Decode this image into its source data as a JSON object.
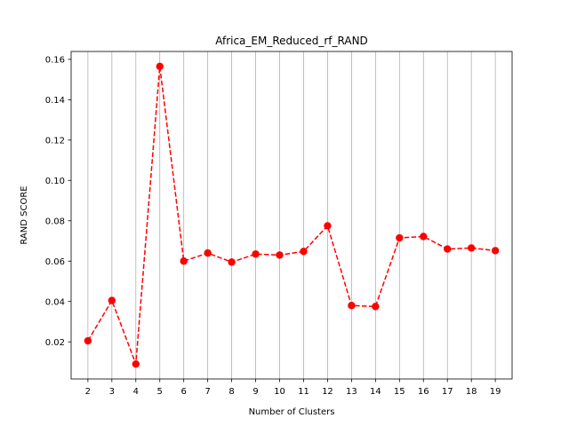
{
  "chart_data": {
    "type": "line",
    "title": "Africa_EM_Reduced_rf_RAND",
    "xlabel": "Number of Clusters",
    "ylabel": "RAND SCORE",
    "x": [
      2,
      3,
      4,
      5,
      6,
      7,
      8,
      9,
      10,
      11,
      12,
      13,
      14,
      15,
      16,
      17,
      18,
      19
    ],
    "series": [
      {
        "values": [
          0.0205,
          0.0405,
          0.009,
          0.1565,
          0.06,
          0.064,
          0.0595,
          0.0635,
          0.063,
          0.0648,
          0.0775,
          0.038,
          0.0375,
          0.0715,
          0.0722,
          0.066,
          0.0665,
          0.0652
        ],
        "color": "#ff0000",
        "line_style": "dashed",
        "marker": "circle"
      }
    ],
    "xlim": [
      1.3,
      19.7
    ],
    "ylim": [
      0.0016,
      0.1639
    ],
    "yticks": [
      0.02,
      0.04,
      0.06,
      0.08,
      0.1,
      0.12,
      0.14,
      0.16
    ],
    "ytick_labels": [
      "0.02",
      "0.04",
      "0.06",
      "0.08",
      "0.10",
      "0.12",
      "0.14",
      "0.16"
    ],
    "xticks": [
      2,
      3,
      4,
      5,
      6,
      7,
      8,
      9,
      10,
      11,
      12,
      13,
      14,
      15,
      16,
      17,
      18,
      19
    ],
    "xtick_labels": [
      "2",
      "3",
      "4",
      "5",
      "6",
      "7",
      "8",
      "9",
      "10",
      "11",
      "12",
      "13",
      "14",
      "15",
      "16",
      "17",
      "18",
      "19"
    ],
    "grid": "vertical",
    "grid_color": "#b0b0b0"
  }
}
